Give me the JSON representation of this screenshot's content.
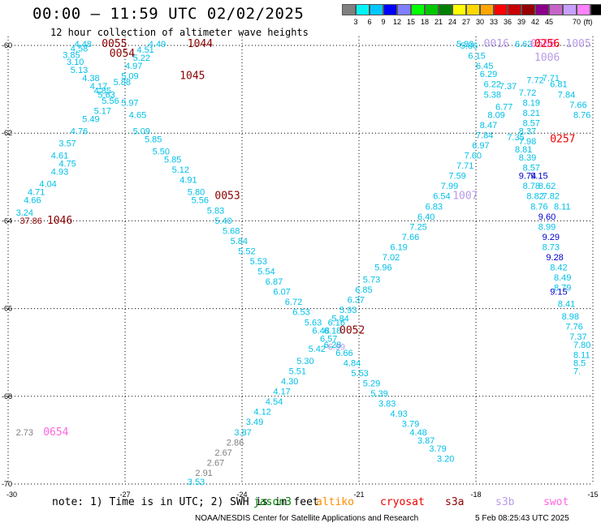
{
  "header": {
    "title": "00:00 – 11:59 UTC 02/02/2025",
    "subtitle": "12 hour collection of altimeter wave heights"
  },
  "colorbar": {
    "unit": "(ft)",
    "colors": [
      "#808080",
      "#00f5f5",
      "#00c8ff",
      "#0000ff",
      "#7f7fff",
      "#00ff00",
      "#00c800",
      "#008000",
      "#ffff00",
      "#ffd700",
      "#ffa500",
      "#ff0000",
      "#c80000",
      "#960000",
      "#8b008b",
      "#c864c8",
      "#c8a0ff",
      "#ff82ff",
      "#000000"
    ],
    "labels": [
      "3",
      "6",
      "9",
      "12",
      "15",
      "18",
      "21",
      "24",
      "27",
      "30",
      "33",
      "36",
      "39",
      "42",
      "45",
      "70"
    ]
  },
  "axes": {
    "x_ticks": [
      "-30",
      "-27",
      "-24",
      "-21",
      "-18",
      "-15"
    ],
    "y_ticks": [
      "-60",
      "-62",
      "-64",
      "-66",
      "-68",
      "-70"
    ]
  },
  "colors": {
    "cyan": "#00c0e8",
    "gray": "#808080",
    "blue": "#0000cc",
    "darkred": "#8b0000",
    "red": "#ee0000",
    "pink": "#ff66dd",
    "lavender": "#b89ae8"
  },
  "markers": [
    {
      "text": "0055",
      "lat": -60.0,
      "lon": -27.6,
      "c": "darkred"
    },
    {
      "text": "0054",
      "lat": -60.3,
      "lon": -27.4,
      "c": "darkred"
    },
    {
      "text": "1044",
      "lat": -60.05,
      "lon": -25.4,
      "c": "darkred"
    },
    {
      "text": "1045",
      "lat": -60.85,
      "lon": -25.6,
      "c": "darkred"
    },
    {
      "text": "0053",
      "lat": -63.8,
      "lon": -24.7,
      "c": "darkred"
    },
    {
      "text": "1046",
      "lat": -64.4,
      "lon": -29.0,
      "c": "darkred"
    },
    {
      "text": "0052",
      "lat": -67.1,
      "lon": -21.5,
      "c": "darkred"
    },
    {
      "text": "0654",
      "lat": -69.6,
      "lon": -29.1,
      "c": "pink"
    },
    {
      "text": "0016",
      "lat": -59.9,
      "lon": -17.8,
      "c": "lavender"
    },
    {
      "text": "0508",
      "lat": -59.9,
      "lon": -16.6,
      "c": "pink"
    },
    {
      "text": "1005",
      "lat": -60.0,
      "lon": -15.7,
      "c": "lavender"
    },
    {
      "text": "1006",
      "lat": -60.4,
      "lon": -16.5,
      "c": "lavender"
    },
    {
      "text": "1007",
      "lat": -63.8,
      "lon": -18.6,
      "c": "lavender"
    },
    {
      "text": "0256",
      "lat": -60.05,
      "lon": -16.5,
      "c": "red"
    },
    {
      "text": "0257",
      "lat": -62.4,
      "lon": -16.1,
      "c": "red"
    }
  ],
  "values": [
    {
      "v": "4.48",
      "lat": -60.0,
      "lon": -28.3,
      "c": "cyan"
    },
    {
      "v": "4.58",
      "lat": -60.17,
      "lon": -28.4,
      "c": "cyan"
    },
    {
      "v": "3.85",
      "lat": -60.33,
      "lon": -28.6,
      "c": "cyan"
    },
    {
      "v": "3.10",
      "lat": -60.5,
      "lon": -28.5,
      "c": "cyan"
    },
    {
      "v": "5.13",
      "lat": -60.7,
      "lon": -28.4,
      "c": "cyan"
    },
    {
      "v": "4.38",
      "lat": -60.9,
      "lon": -28.1,
      "c": "cyan"
    },
    {
      "v": "4.17",
      "lat": -61.1,
      "lon": -27.9,
      "c": "cyan"
    },
    {
      "v": "4.85",
      "lat": -61.2,
      "lon": -27.8,
      "c": "cyan"
    },
    {
      "v": "5.63",
      "lat": -61.3,
      "lon": -27.7,
      "c": "cyan"
    },
    {
      "v": "5.56",
      "lat": -61.45,
      "lon": -27.6,
      "c": "cyan"
    },
    {
      "v": "5.17",
      "lat": -61.7,
      "lon": -27.8,
      "c": "cyan"
    },
    {
      "v": "5.49",
      "lat": -61.9,
      "lon": -28.1,
      "c": "cyan"
    },
    {
      "v": "4.76",
      "lat": -62.2,
      "lon": -28.4,
      "c": "cyan"
    },
    {
      "v": "3.57",
      "lat": -62.5,
      "lon": -28.7,
      "c": "cyan"
    },
    {
      "v": "4.61",
      "lat": -62.8,
      "lon": -28.9,
      "c": "cyan"
    },
    {
      "v": "4.75",
      "lat": -63.0,
      "lon": -28.7,
      "c": "cyan"
    },
    {
      "v": "4.93",
      "lat": -63.2,
      "lon": -28.9,
      "c": "cyan"
    },
    {
      "v": "4.04",
      "lat": -63.5,
      "lon": -29.2,
      "c": "cyan"
    },
    {
      "v": "4.71",
      "lat": -63.7,
      "lon": -29.5,
      "c": "cyan"
    },
    {
      "v": "4.66",
      "lat": -63.9,
      "lon": -29.6,
      "c": "cyan"
    },
    {
      "v": "3.24",
      "lat": -64.2,
      "lon": -29.8,
      "c": "cyan"
    },
    {
      "v": "37.86",
      "lat": -64.4,
      "lon": -29.7,
      "c": "darkred"
    },
    {
      "v": "4.49",
      "lat": -60.0,
      "lon": -26.4,
      "c": "cyan"
    },
    {
      "v": "4.51",
      "lat": -60.2,
      "lon": -26.7,
      "c": "cyan"
    },
    {
      "v": "5.22",
      "lat": -60.4,
      "lon": -26.8,
      "c": "cyan"
    },
    {
      "v": "4.97",
      "lat": -60.6,
      "lon": -27.0,
      "c": "cyan"
    },
    {
      "v": "5.09",
      "lat": -60.85,
      "lon": -27.1,
      "c": "cyan"
    },
    {
      "v": "5.88",
      "lat": -61.0,
      "lon": -27.3,
      "c": "cyan"
    },
    {
      "v": "5.97",
      "lat": -61.5,
      "lon": -27.1,
      "c": "cyan"
    },
    {
      "v": "4.65",
      "lat": -61.8,
      "lon": -26.9,
      "c": "cyan"
    },
    {
      "v": "5.09",
      "lat": -62.2,
      "lon": -26.8,
      "c": "cyan"
    },
    {
      "v": "5.85",
      "lat": -62.4,
      "lon": -26.5,
      "c": "cyan"
    },
    {
      "v": "5.50",
      "lat": -62.7,
      "lon": -26.3,
      "c": "cyan"
    },
    {
      "v": "5.85",
      "lat": -62.9,
      "lon": -26.0,
      "c": "cyan"
    },
    {
      "v": "5.12",
      "lat": -63.15,
      "lon": -25.8,
      "c": "cyan"
    },
    {
      "v": "4.91",
      "lat": -63.4,
      "lon": -25.6,
      "c": "cyan"
    },
    {
      "v": "5.80",
      "lat": -63.7,
      "lon": -25.4,
      "c": "cyan"
    },
    {
      "v": "5.56",
      "lat": -63.9,
      "lon": -25.3,
      "c": "cyan"
    },
    {
      "v": "5.83",
      "lat": -64.15,
      "lon": -24.9,
      "c": "cyan"
    },
    {
      "v": "5.40",
      "lat": -64.4,
      "lon": -24.7,
      "c": "cyan"
    },
    {
      "v": "5.68",
      "lat": -64.65,
      "lon": -24.5,
      "c": "cyan"
    },
    {
      "v": "5.84",
      "lat": -64.9,
      "lon": -24.3,
      "c": "cyan"
    },
    {
      "v": "5.52",
      "lat": -65.15,
      "lon": -24.1,
      "c": "cyan"
    },
    {
      "v": "5.53",
      "lat": -65.4,
      "lon": -23.8,
      "c": "cyan"
    },
    {
      "v": "5.54",
      "lat": -65.65,
      "lon": -23.6,
      "c": "cyan"
    },
    {
      "v": "6.87",
      "lat": -65.9,
      "lon": -23.4,
      "c": "cyan"
    },
    {
      "v": "6.07",
      "lat": -66.15,
      "lon": -23.2,
      "c": "cyan"
    },
    {
      "v": "6.72",
      "lat": -66.4,
      "lon": -22.9,
      "c": "cyan"
    },
    {
      "v": "6.53",
      "lat": -66.65,
      "lon": -22.7,
      "c": "cyan"
    },
    {
      "v": "5.63",
      "lat": -66.9,
      "lon": -22.4,
      "c": "cyan"
    },
    {
      "v": "6.48",
      "lat": -67.1,
      "lon": -22.2,
      "c": "cyan"
    },
    {
      "v": "6.57",
      "lat": -67.3,
      "lon": -22.0,
      "c": "cyan"
    },
    {
      "v": "6.99",
      "lat": -67.5,
      "lon": -21.8,
      "c": "lavender"
    },
    {
      "v": "6.66",
      "lat": -67.65,
      "lon": -21.6,
      "c": "cyan"
    },
    {
      "v": "4.84",
      "lat": -67.9,
      "lon": -21.4,
      "c": "cyan"
    },
    {
      "v": "5.53",
      "lat": -68.15,
      "lon": -21.2,
      "c": "cyan"
    },
    {
      "v": "5.29",
      "lat": -68.4,
      "lon": -20.9,
      "c": "cyan"
    },
    {
      "v": "5.39",
      "lat": -68.65,
      "lon": -20.7,
      "c": "cyan"
    },
    {
      "v": "3.83",
      "lat": -68.9,
      "lon": -20.5,
      "c": "cyan"
    },
    {
      "v": "4.93",
      "lat": -69.15,
      "lon": -20.2,
      "c": "cyan"
    },
    {
      "v": "3.79",
      "lat": -69.4,
      "lon": -19.9,
      "c": "cyan"
    },
    {
      "v": "4.48",
      "lat": -69.6,
      "lon": -19.7,
      "c": "cyan"
    },
    {
      "v": "3.87",
      "lat": -69.8,
      "lon": -19.5,
      "c": "cyan"
    },
    {
      "v": "3.79",
      "lat": -70.0,
      "lon": -19.2,
      "c": "cyan"
    },
    {
      "v": "3.20",
      "lat": -70.25,
      "lon": -19.0,
      "c": "cyan"
    },
    {
      "v": "6.16",
      "lat": -66.9,
      "lon": -21.8,
      "c": "cyan"
    },
    {
      "v": "6.18",
      "lat": -67.1,
      "lon": -21.9,
      "c": "cyan"
    },
    {
      "v": "6.28",
      "lat": -67.45,
      "lon": -21.9,
      "c": "cyan"
    },
    {
      "v": "5.42",
      "lat": -67.55,
      "lon": -22.3,
      "c": "cyan"
    },
    {
      "v": "5.30",
      "lat": -67.85,
      "lon": -22.6,
      "c": "cyan"
    },
    {
      "v": "5.51",
      "lat": -68.1,
      "lon": -22.8,
      "c": "cyan"
    },
    {
      "v": "4.30",
      "lat": -68.35,
      "lon": -23.0,
      "c": "cyan"
    },
    {
      "v": "4.17",
      "lat": -68.6,
      "lon": -23.2,
      "c": "cyan"
    },
    {
      "v": "4.54",
      "lat": -68.85,
      "lon": -23.4,
      "c": "cyan"
    },
    {
      "v": "4.12",
      "lat": -69.1,
      "lon": -23.7,
      "c": "cyan"
    },
    {
      "v": "3.49",
      "lat": -69.35,
      "lon": -23.9,
      "c": "cyan"
    },
    {
      "v": "3.87",
      "lat": -69.6,
      "lon": -24.2,
      "c": "cyan"
    },
    {
      "v": "2.86",
      "lat": -69.85,
      "lon": -24.4,
      "c": "gray"
    },
    {
      "v": "2.67",
      "lat": -70.1,
      "lon": -24.7,
      "c": "gray"
    },
    {
      "v": "2.67",
      "lat": -70.35,
      "lon": -24.9,
      "c": "gray"
    },
    {
      "v": "2.91",
      "lat": -70.6,
      "lon": -25.2,
      "c": "gray"
    },
    {
      "v": "3.53",
      "lat": -70.85,
      "lon": -25.4,
      "c": "cyan"
    },
    {
      "v": "2.73",
      "lat": -69.6,
      "lon": -29.8,
      "c": "gray"
    },
    {
      "v": "5.84",
      "lat": -66.8,
      "lon": -21.7,
      "c": "cyan"
    },
    {
      "v": "5.93",
      "lat": -66.6,
      "lon": -21.5,
      "c": "cyan"
    },
    {
      "v": "6.37",
      "lat": -66.35,
      "lon": -21.3,
      "c": "cyan"
    },
    {
      "v": "6.85",
      "lat": -66.1,
      "lon": -21.1,
      "c": "cyan"
    },
    {
      "v": "5.73",
      "lat": -65.85,
      "lon": -20.9,
      "c": "cyan"
    },
    {
      "v": "5.96",
      "lat": -65.55,
      "lon": -20.6,
      "c": "cyan"
    },
    {
      "v": "7.02",
      "lat": -65.3,
      "lon": -20.4,
      "c": "cyan"
    },
    {
      "v": "6.19",
      "lat": -65.05,
      "lon": -20.2,
      "c": "cyan"
    },
    {
      "v": "7.66",
      "lat": -64.8,
      "lon": -19.9,
      "c": "cyan"
    },
    {
      "v": "7.25",
      "lat": -64.55,
      "lon": -19.7,
      "c": "cyan"
    },
    {
      "v": "6.40",
      "lat": -64.3,
      "lon": -19.5,
      "c": "cyan"
    },
    {
      "v": "6.83",
      "lat": -64.05,
      "lon": -19.3,
      "c": "cyan"
    },
    {
      "v": "6.54",
      "lat": -63.8,
      "lon": -19.1,
      "c": "cyan"
    },
    {
      "v": "7.99",
      "lat": -63.55,
      "lon": -18.9,
      "c": "cyan"
    },
    {
      "v": "7.59",
      "lat": -63.3,
      "lon": -18.7,
      "c": "cyan"
    },
    {
      "v": "7.71",
      "lat": -63.05,
      "lon": -18.5,
      "c": "cyan"
    },
    {
      "v": "7.60",
      "lat": -62.8,
      "lon": -18.3,
      "c": "cyan"
    },
    {
      "v": "6.97",
      "lat": -62.55,
      "lon": -18.1,
      "c": "cyan"
    },
    {
      "v": "7.84",
      "lat": -62.3,
      "lon": -18.0,
      "c": "cyan"
    },
    {
      "v": "8.47",
      "lat": -62.05,
      "lon": -17.9,
      "c": "cyan"
    },
    {
      "v": "8.09",
      "lat": -61.8,
      "lon": -17.7,
      "c": "cyan"
    },
    {
      "v": "6.77",
      "lat": -61.6,
      "lon": -17.5,
      "c": "cyan"
    },
    {
      "v": "5.38",
      "lat": -61.3,
      "lon": -17.8,
      "c": "cyan"
    },
    {
      "v": "6.22",
      "lat": -61.05,
      "lon": -17.8,
      "c": "cyan"
    },
    {
      "v": "6.29",
      "lat": -60.8,
      "lon": -17.9,
      "c": "cyan"
    },
    {
      "v": "6.45",
      "lat": -60.6,
      "lon": -18.0,
      "c": "cyan"
    },
    {
      "v": "6.15",
      "lat": -60.35,
      "lon": -18.2,
      "c": "cyan"
    },
    {
      "v": "5.86",
      "lat": -60.1,
      "lon": -18.4,
      "c": "cyan"
    },
    {
      "v": "5.83",
      "lat": -59.9,
      "lon": -18.5,
      "c": "cyan"
    },
    {
      "v": "6.62",
      "lat": -59.9,
      "lon": -17.0,
      "c": "cyan"
    },
    {
      "v": "7.37",
      "lat": -61.1,
      "lon": -17.4,
      "c": "cyan"
    },
    {
      "v": "7.72",
      "lat": -60.95,
      "lon": -16.7,
      "c": "cyan"
    },
    {
      "v": "7.71",
      "lat": -60.9,
      "lon": -16.3,
      "c": "cyan"
    },
    {
      "v": "6.81",
      "lat": -61.05,
      "lon": -16.1,
      "c": "cyan"
    },
    {
      "v": "7.84",
      "lat": -61.3,
      "lon": -15.9,
      "c": "cyan"
    },
    {
      "v": "7.66",
      "lat": -61.55,
      "lon": -15.6,
      "c": "cyan"
    },
    {
      "v": "8.76",
      "lat": -61.8,
      "lon": -15.4,
      "c": "cyan"
    },
    {
      "v": "7.72",
      "lat": -61.25,
      "lon": -16.9,
      "c": "cyan"
    },
    {
      "v": "8.19",
      "lat": -61.5,
      "lon": -16.8,
      "c": "cyan"
    },
    {
      "v": "8.21",
      "lat": -61.75,
      "lon": -16.8,
      "c": "cyan"
    },
    {
      "v": "8.57",
      "lat": -62.0,
      "lon": -16.8,
      "c": "cyan"
    },
    {
      "v": "8.37",
      "lat": -62.2,
      "lon": -16.9,
      "c": "cyan"
    },
    {
      "v": "7.35",
      "lat": -62.35,
      "lon": -17.2,
      "c": "cyan"
    },
    {
      "v": "7.98",
      "lat": -62.45,
      "lon": -16.9,
      "c": "cyan"
    },
    {
      "v": "8.81",
      "lat": -62.65,
      "lon": -17.0,
      "c": "cyan"
    },
    {
      "v": "8.39",
      "lat": -62.85,
      "lon": -16.9,
      "c": "cyan"
    },
    {
      "v": "8.57",
      "lat": -63.1,
      "lon": -16.8,
      "c": "cyan"
    },
    {
      "v": "9.74",
      "lat": -63.3,
      "lon": -16.9,
      "c": "blue"
    },
    {
      "v": "9.15",
      "lat": -63.3,
      "lon": -16.6,
      "c": "blue"
    },
    {
      "v": "8.78",
      "lat": -63.55,
      "lon": -16.8,
      "c": "cyan"
    },
    {
      "v": "8.62",
      "lat": -63.55,
      "lon": -16.4,
      "c": "cyan"
    },
    {
      "v": "8.82",
      "lat": -63.8,
      "lon": -16.7,
      "c": "cyan"
    },
    {
      "v": "7.82",
      "lat": -63.8,
      "lon": -16.3,
      "c": "cyan"
    },
    {
      "v": "8.76",
      "lat": -64.05,
      "lon": -16.6,
      "c": "cyan"
    },
    {
      "v": "8.11",
      "lat": -64.05,
      "lon": -16.0,
      "c": "cyan"
    },
    {
      "v": "9.60",
      "lat": -64.3,
      "lon": -16.4,
      "c": "blue"
    },
    {
      "v": "8.99",
      "lat": -64.55,
      "lon": -16.4,
      "c": "cyan"
    },
    {
      "v": "9.29",
      "lat": -64.8,
      "lon": -16.3,
      "c": "blue"
    },
    {
      "v": "8.73",
      "lat": -65.05,
      "lon": -16.3,
      "c": "cyan"
    },
    {
      "v": "9.28",
      "lat": -65.3,
      "lon": -16.2,
      "c": "blue"
    },
    {
      "v": "8.42",
      "lat": -65.55,
      "lon": -16.1,
      "c": "cyan"
    },
    {
      "v": "8.49",
      "lat": -65.8,
      "lon": -16.0,
      "c": "cyan"
    },
    {
      "v": "8.79",
      "lat": -66.05,
      "lon": -16.0,
      "c": "cyan"
    },
    {
      "v": "9.15",
      "lat": -66.15,
      "lon": -16.1,
      "c": "blue"
    },
    {
      "v": "8.41",
      "lat": -66.45,
      "lon": -15.9,
      "c": "cyan"
    },
    {
      "v": "8.98",
      "lat": -66.75,
      "lon": -15.8,
      "c": "cyan"
    },
    {
      "v": "7.76",
      "lat": -67.0,
      "lon": -15.7,
      "c": "cyan"
    },
    {
      "v": "7.37",
      "lat": -67.25,
      "lon": -15.6,
      "c": "cyan"
    },
    {
      "v": "7.80",
      "lat": -67.45,
      "lon": -15.5,
      "c": "cyan"
    },
    {
      "v": "8.11",
      "lat": -67.7,
      "lon": -15.4,
      "c": "cyan"
    },
    {
      "v": "8.5",
      "lat": -67.9,
      "lon": -15.3,
      "c": "cyan"
    },
    {
      "v": "7.",
      "lat": -68.1,
      "lon": -15.2,
      "c": "cyan"
    }
  ],
  "footer": {
    "note": "note: 1) Time is in UTC; 2) SWH is in feet",
    "satellites": [
      {
        "name": "jason3",
        "color": "#008000"
      },
      {
        "name": "altiko",
        "color": "#ff8c00"
      },
      {
        "name": "cryosat",
        "color": "#ee0000"
      },
      {
        "name": "s3a",
        "color": "#8b0000"
      },
      {
        "name": "s3b",
        "color": "#b89ae8"
      },
      {
        "name": "swot",
        "color": "#ff66dd"
      }
    ],
    "credit": "NOAA/NESDIS Center for Satellite Applications and Research",
    "timestamp": "5 Feb 08:25:43 UTC 2025"
  }
}
